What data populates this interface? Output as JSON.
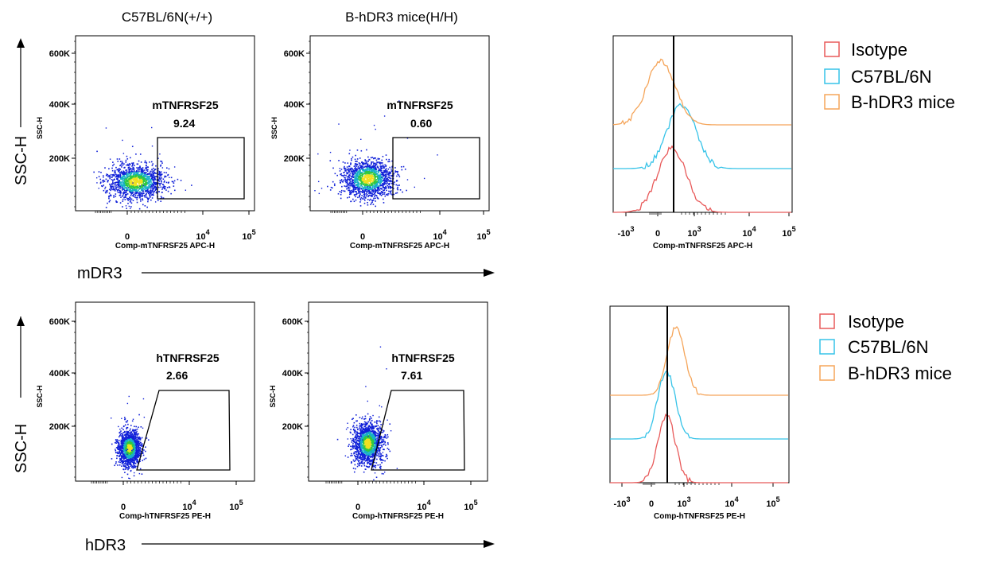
{
  "column_headers": [
    "C57BL/6N(+/+)",
    "B-hDR3 mice(H/H)"
  ],
  "row_axes": {
    "ylabel": "SSC-H",
    "row1_marker": "mDR3",
    "row2_marker": "hDR3"
  },
  "legend": [
    "Isotype",
    "C57BL/6N",
    "B-hDR3 mice"
  ],
  "colors": {
    "isotype": "#e85a5a",
    "c57": "#36c3e8",
    "hdr3": "#f5a55a",
    "gate": "#000000"
  },
  "chart_data": [
    {
      "type": "scatter",
      "id": "row1-c57",
      "ylabel": "SSC-H",
      "xlabel": "Comp-mTNFRSF25 APC-H",
      "y_ticks": [
        "200K",
        "400K",
        "600K"
      ],
      "x_ticks": [
        "0",
        "10^4",
        "10^5"
      ],
      "gate": {
        "name": "mTNFRSF25",
        "percent": "9.24",
        "shape": "rectangle"
      }
    },
    {
      "type": "scatter",
      "id": "row1-hdr3",
      "ylabel": "SSC-H",
      "xlabel": "Comp-mTNFRSF25 APC-H",
      "y_ticks": [
        "200K",
        "400K",
        "600K"
      ],
      "x_ticks": [
        "0",
        "10^4",
        "10^5"
      ],
      "gate": {
        "name": "mTNFRSF25",
        "percent": "0.60",
        "shape": "rectangle"
      }
    },
    {
      "type": "line",
      "id": "row1-hist",
      "xlabel": "Comp-mTNFRSF25 APC-H",
      "x_ticks": [
        "-10^3",
        "0",
        "10^3",
        "10^4",
        "10^5"
      ],
      "series": [
        {
          "name": "Isotype"
        },
        {
          "name": "C57BL/6N"
        },
        {
          "name": "B-hDR3 mice"
        }
      ]
    },
    {
      "type": "scatter",
      "id": "row2-c57",
      "ylabel": "SSC-H",
      "xlabel": "Comp-hTNFRSF25 PE-H",
      "y_ticks": [
        "200K",
        "400K",
        "600K"
      ],
      "x_ticks": [
        "0",
        "10^4",
        "10^5"
      ],
      "gate": {
        "name": "hTNFRSF25",
        "percent": "2.66",
        "shape": "trapezoid"
      }
    },
    {
      "type": "scatter",
      "id": "row2-hdr3",
      "ylabel": "SSC-H",
      "xlabel": "Comp-hTNFRSF25 PE-H",
      "y_ticks": [
        "200K",
        "400K",
        "600K"
      ],
      "x_ticks": [
        "0",
        "10^4",
        "10^5"
      ],
      "gate": {
        "name": "hTNFRSF25",
        "percent": "7.61",
        "shape": "trapezoid"
      }
    },
    {
      "type": "line",
      "id": "row2-hist",
      "xlabel": "Comp-hTNFRSF25 PE-H",
      "x_ticks": [
        "-10^3",
        "0",
        "10^3",
        "10^4",
        "10^5"
      ],
      "series": [
        {
          "name": "Isotype"
        },
        {
          "name": "C57BL/6N"
        },
        {
          "name": "B-hDR3 mice"
        }
      ]
    }
  ]
}
